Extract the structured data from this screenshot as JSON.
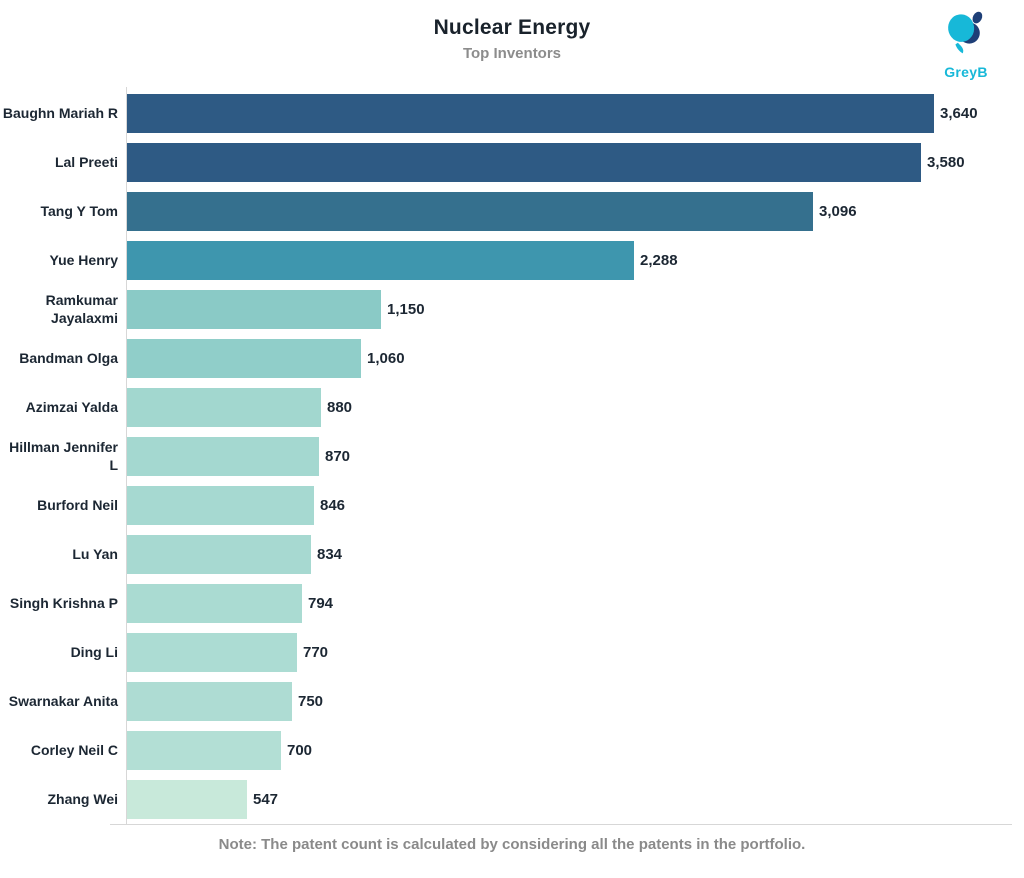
{
  "header": {
    "title": "Nuclear Energy",
    "subtitle": "Top Inventors",
    "logo_text": "GreyB"
  },
  "chart_data": {
    "type": "bar",
    "orientation": "horizontal",
    "title": "Nuclear Energy",
    "subtitle": "Top Inventors",
    "xlabel": "",
    "ylabel": "",
    "xlim": [
      0,
      3640
    ],
    "grid": "off",
    "legend": "none",
    "categories": [
      "Baughn Mariah R",
      "Lal Preeti",
      "Tang Y Tom",
      "Yue Henry",
      "Ramkumar\nJayalaxmi",
      "Bandman Olga",
      "Azimzai Yalda",
      "Hillman Jennifer\nL",
      "Burford Neil",
      "Lu Yan",
      "Singh Krishna P",
      "Ding Li",
      "Swarnakar Anita",
      "Corley Neil C",
      "Zhang Wei"
    ],
    "values": [
      3640,
      3580,
      3096,
      2288,
      1150,
      1060,
      880,
      870,
      846,
      834,
      794,
      770,
      750,
      700,
      547
    ],
    "value_labels": [
      "3,640",
      "3,580",
      "3,096",
      "2,288",
      "1,150",
      "1,060",
      "880",
      "870",
      "846",
      "834",
      "794",
      "770",
      "750",
      "700",
      "547"
    ],
    "bar_colors": [
      "#2e5a84",
      "#2e5a84",
      "#35708e",
      "#3e96ae",
      "#8acac6",
      "#90cec9",
      "#a2d7cf",
      "#a4d8d0",
      "#a6d9d1",
      "#a7d9d1",
      "#aadbd2",
      "#acdcd3",
      "#aedcd3",
      "#b3dfd5",
      "#c8e9da"
    ]
  },
  "footer": {
    "note": "Note: The patent count is calculated by considering all the patents in the portfolio."
  },
  "colors": {
    "accent_cyan": "#17b8d8",
    "accent_navy": "#1e3f77",
    "title_text": "#19222b",
    "muted_text": "#8a8a8a",
    "axis_line": "#d7d7d7",
    "label_text": "#1c2733"
  }
}
